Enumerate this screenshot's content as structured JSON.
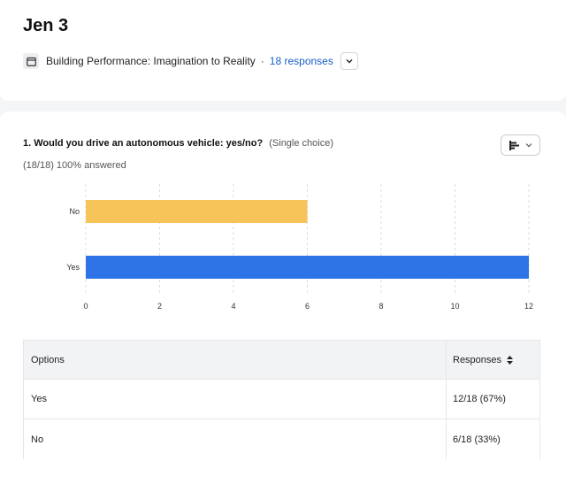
{
  "header": {
    "title": "Jen 3",
    "meeting_title": "Building Performance: Imagination to Reality",
    "separator": "·",
    "responses_link": "18 responses"
  },
  "question": {
    "title": "1. Would you drive an autonomous vehicle: yes/no?",
    "type": "(Single choice)",
    "answered": "(18/18) 100% answered"
  },
  "chart_data": {
    "type": "bar",
    "orientation": "horizontal",
    "categories": [
      "No",
      "Yes"
    ],
    "values": [
      6,
      12
    ],
    "colors": [
      "#f7c45a",
      "#2f74e6"
    ],
    "xlim": [
      0,
      12
    ],
    "xticks": [
      "0",
      "2",
      "4",
      "6",
      "8",
      "10",
      "12"
    ],
    "grid": true
  },
  "table": {
    "headers": {
      "options": "Options",
      "responses": "Responses"
    },
    "rows": [
      {
        "option": "Yes",
        "responses": "12/18 (67%)"
      },
      {
        "option": "No",
        "responses": "6/18 (33%)"
      }
    ]
  },
  "icons": {
    "calendar": "calendar-icon",
    "dropdown": "chevron-down-icon",
    "chart_toggle": "bar-chart-icon",
    "sort": "sort-icon"
  }
}
